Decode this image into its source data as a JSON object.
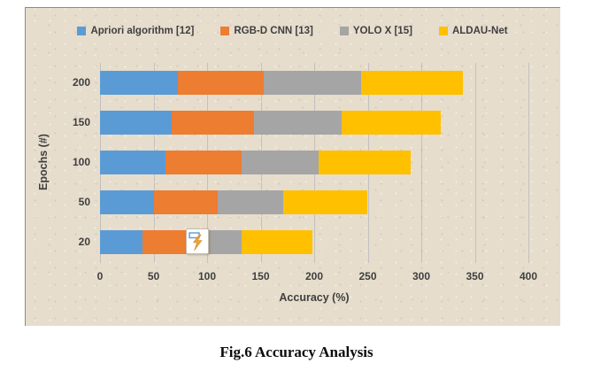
{
  "caption": "Fig.6 Accuracy Analysis",
  "legend": [
    {
      "label": "Apriori algorithm [12]",
      "color": "#5B9BD5"
    },
    {
      "label": "RGB-D CNN [13]",
      "color": "#ED7D31"
    },
    {
      "label": "YOLO X [15]",
      "color": "#A5A5A5"
    },
    {
      "label": "ALDAU-Net",
      "color": "#FFC000"
    }
  ],
  "chart_data": {
    "type": "bar",
    "orientation": "horizontal",
    "stacked": true,
    "xlabel": "Accuracy (%)",
    "ylabel": "Epochs (#)",
    "categories": [
      "200",
      "150",
      "100",
      "50",
      "20"
    ],
    "series": [
      {
        "name": "Apriori algorithm [12]",
        "color": "#5B9BD5",
        "values": [
          73,
          67,
          61,
          50,
          40
        ]
      },
      {
        "name": "RGB-D CNN [13]",
        "color": "#ED7D31",
        "values": [
          80,
          77,
          71,
          60,
          40
        ]
      },
      {
        "name": "YOLO X [15]",
        "color": "#A5A5A5",
        "values": [
          91,
          82,
          72,
          61,
          52
        ]
      },
      {
        "name": "ALDAU-Net",
        "color": "#FFC000",
        "values": [
          95,
          92,
          86,
          79,
          66
        ]
      }
    ],
    "x_ticks": [
      0,
      50,
      100,
      150,
      200,
      250,
      300,
      350,
      400
    ],
    "xlim": [
      0,
      400
    ],
    "gridlines": true,
    "legend_position": "top",
    "background": "#E6DDCD"
  },
  "overlay": {
    "icon": "flash-cursor-icon",
    "bolt_color": "#EDA33C",
    "rect_stroke": "#5B9BD5"
  }
}
